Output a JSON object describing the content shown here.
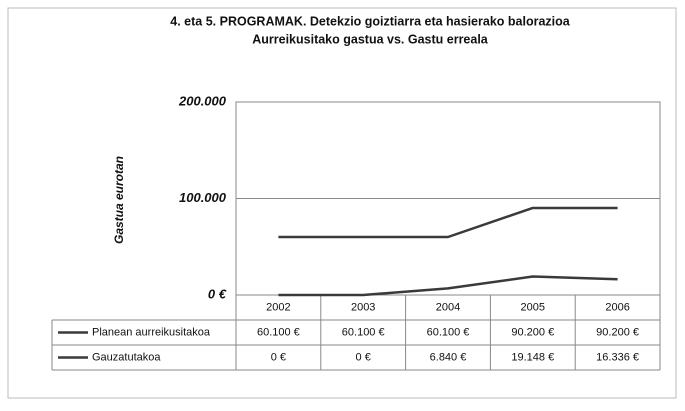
{
  "chart_data": {
    "type": "line",
    "title": "4. eta 5. PROGRAMAK. Detekzio goiztiarra eta hasierako balorazioa",
    "subtitle": "Aurreikusitako gastua vs. Gastu erreala",
    "y_label": "Gastua eurotan",
    "categories": [
      "2002",
      "2003",
      "2004",
      "2005",
      "2006"
    ],
    "series": [
      {
        "name": "Planean aurreikusitakoa",
        "color": "#3a3a3a",
        "values": [
          60100,
          60100,
          60100,
          90200,
          90200
        ],
        "value_labels": [
          "60.100 €",
          "60.100 €",
          "60.100 €",
          "90.200 €",
          "90.200 €"
        ]
      },
      {
        "name": "Gauzatutakoa",
        "color": "#3a3a3a",
        "values": [
          0,
          0,
          6840,
          19148,
          16336
        ],
        "value_labels": [
          "0 €",
          "0 €",
          "6.840 €",
          "19.148 €",
          "16.336 €"
        ]
      }
    ],
    "ylim": [
      0,
      200000
    ],
    "yticks": [
      {
        "value": 0,
        "label": "0 €"
      },
      {
        "value": 100000,
        "label": "100.000"
      },
      {
        "value": 200000,
        "label": "200.000"
      }
    ],
    "grid": true
  }
}
